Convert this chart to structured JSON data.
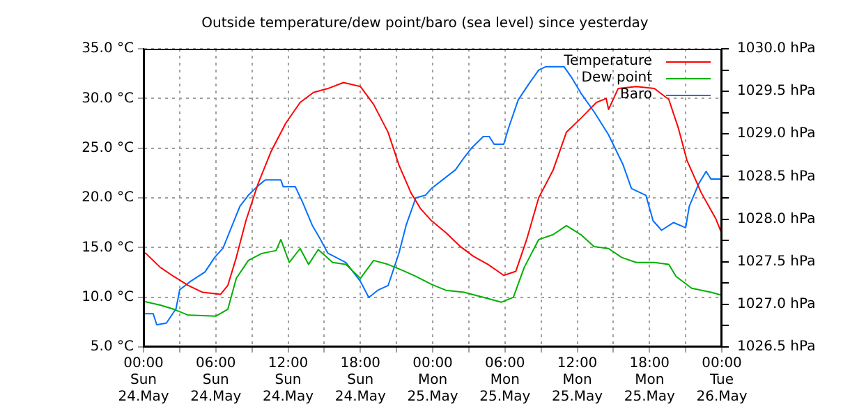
{
  "chart_data": {
    "type": "line",
    "title": "Outside temperature/dew point/baro (sea level) since yesterday",
    "xlim": [
      "--05-24T00:00",
      "--05-26T00:00"
    ],
    "xticks": [
      {
        "value": "--05-24T00:00",
        "label": "00:00\nSun\n24.May"
      },
      {
        "value": "--05-24T03:00",
        "label": null
      },
      {
        "value": "--05-24T06:00",
        "label": "06:00\nSun\n24.May"
      },
      {
        "value": "--05-24T09:00",
        "label": null
      },
      {
        "value": "--05-24T12:00",
        "label": "12:00\nSun\n24.May"
      },
      {
        "value": "--05-24T15:00",
        "label": null
      },
      {
        "value": "--05-24T18:00",
        "label": "18:00\nSun\n24.May"
      },
      {
        "value": "--05-24T21:00",
        "label": null
      },
      {
        "value": "--05-25T00:00",
        "label": "00:00\nMon\n25.May"
      },
      {
        "value": "--05-25T03:00",
        "label": null
      },
      {
        "value": "--05-25T06:00",
        "label": "06:00\nMon\n25.May"
      },
      {
        "value": "--05-25T09:00",
        "label": null
      },
      {
        "value": "--05-25T12:00",
        "label": "12:00\nMon\n25.May"
      },
      {
        "value": "--05-25T15:00",
        "label": null
      },
      {
        "value": "--05-25T18:00",
        "label": "18:00\nMon\n25.May"
      },
      {
        "value": "--05-25T21:00",
        "label": null
      },
      {
        "value": "--05-26T00:00",
        "label": "00:00\nTue\n26.May"
      }
    ],
    "ylim": [
      5,
      35
    ],
    "yticks": [
      {
        "value": 5,
        "label": "5.0 °C"
      },
      {
        "value": 10,
        "label": "10.0 °C"
      },
      {
        "value": 15,
        "label": "15.0 °C"
      },
      {
        "value": 20,
        "label": "20.0 °C"
      },
      {
        "value": 25,
        "label": "25.0 °C"
      },
      {
        "value": 30,
        "label": "30.0 °C"
      },
      {
        "value": 35,
        "label": "35.0 °C"
      }
    ],
    "y2lim": [
      1026.5,
      1030
    ],
    "y2ticks": [
      {
        "value": 1026.5,
        "label": "1026.5 hPa"
      },
      {
        "value": 1026.75,
        "label": null
      },
      {
        "value": 1027,
        "label": "1027.0 hPa"
      },
      {
        "value": 1027.25,
        "label": null
      },
      {
        "value": 1027.5,
        "label": "1027.5 hPa"
      },
      {
        "value": 1027.75,
        "label": null
      },
      {
        "value": 1028,
        "label": "1028.0 hPa"
      },
      {
        "value": 1028.25,
        "label": null
      },
      {
        "value": 1028.5,
        "label": "1028.5 hPa"
      },
      {
        "value": 1028.75,
        "label": null
      },
      {
        "value": 1029,
        "label": "1029.0 hPa"
      },
      {
        "value": 1029.25,
        "label": null
      },
      {
        "value": 1029.5,
        "label": "1029.5 hPa"
      },
      {
        "value": 1029.75,
        "label": null
      },
      {
        "value": 1030,
        "label": "1030.0 hPa"
      }
    ],
    "grid": true,
    "legend": "top right",
    "marker": "none",
    "line_style": "solid",
    "series": [
      {
        "name": "Temperature",
        "color": "#ff0000",
        "x": [
          "--05-24T00:00",
          "--05-24T00:12",
          "--05-24T01:24",
          "--05-24T02:30",
          "--05-24T03:42",
          "--05-24T04:54",
          "--05-24T06:24",
          "--05-24T07:00",
          "--05-24T07:42",
          "--05-24T08:30",
          "--05-24T09:30",
          "--05-24T10:36",
          "--05-24T11:48",
          "--05-24T13:00",
          "--05-24T14:06",
          "--05-24T15:18",
          "--05-24T16:36",
          "--05-24T18:00",
          "--05-24T19:06",
          "--05-24T20:18",
          "--05-24T21:12",
          "--05-24T22:12",
          "--05-24T23:00",
          "--05-24T23:54",
          "--05-25T01:06",
          "--05-25T02:18",
          "--05-25T03:24",
          "--05-25T04:36",
          "--05-25T05:54",
          "--05-25T06:54",
          "--05-25T07:48",
          "--05-25T08:48",
          "--05-25T10:00",
          "--05-25T11:06",
          "--05-25T12:18",
          "--05-25T13:36",
          "--05-25T14:24",
          "--05-25T14:36",
          "--05-25T15:24",
          "--05-25T16:54",
          "--05-25T18:24",
          "--05-25T19:36",
          "--05-25T20:24",
          "--05-25T21:06",
          "--05-25T22:18",
          "--05-25T23:30",
          "--05-26T00:00"
        ],
        "values": [
          14.5,
          14.4,
          13,
          12.1,
          11.2,
          10.5,
          10.3,
          11.2,
          14,
          17.7,
          21.4,
          24.7,
          27.5,
          29.6,
          30.6,
          31,
          31.6,
          31.2,
          29.4,
          26.6,
          23.3,
          20.5,
          18.9,
          17.7,
          16.5,
          15.1,
          14.1,
          13.3,
          12.2,
          12.6,
          15.8,
          20,
          22.8,
          26.6,
          28,
          29.6,
          30,
          28.9,
          31,
          31.2,
          31,
          29.9,
          27,
          23.8,
          20.5,
          17.9,
          16.4
        ]
      },
      {
        "name": "Dew point",
        "color": "#00b000",
        "x": [
          "--05-24T00:00",
          "--05-24T01:24",
          "--05-24T02:30",
          "--05-24T03:42",
          "--05-24T06:00",
          "--05-24T07:00",
          "--05-24T07:42",
          "--05-24T08:42",
          "--05-24T09:48",
          "--05-24T11:00",
          "--05-24T11:24",
          "--05-24T12:06",
          "--05-24T13:00",
          "--05-24T13:42",
          "--05-24T14:30",
          "--05-24T15:42",
          "--05-24T16:48",
          "--05-24T18:00",
          "--05-24T19:06",
          "--05-24T20:18",
          "--05-24T21:30",
          "--05-24T22:36",
          "--05-24T23:54",
          "--05-25T01:06",
          "--05-25T02:36",
          "--05-25T04:12",
          "--05-25T05:42",
          "--05-25T06:42",
          "--05-25T07:36",
          "--05-25T08:48",
          "--05-25T10:00",
          "--05-25T11:06",
          "--05-25T12:18",
          "--05-25T13:24",
          "--05-25T14:36",
          "--05-25T15:42",
          "--05-25T16:54",
          "--05-25T18:24",
          "--05-25T19:36",
          "--05-25T20:12",
          "--05-25T21:30",
          "--05-25T23:06",
          "--05-26T00:00"
        ],
        "values": [
          9.6,
          9.2,
          8.8,
          8.2,
          8.1,
          8.8,
          11.9,
          13.7,
          14.4,
          14.7,
          15.8,
          13.5,
          14.9,
          13.3,
          14.8,
          13.5,
          13.3,
          11.9,
          13.7,
          13.3,
          12.7,
          12.1,
          11.3,
          10.7,
          10.5,
          10,
          9.5,
          10,
          13,
          15.8,
          16.3,
          17.2,
          16.3,
          15.1,
          14.9,
          14,
          13.5,
          13.5,
          13.3,
          12.1,
          10.9,
          10.5,
          10.2
        ]
      },
      {
        "name": "Baro",
        "color": "#0070ff",
        "axis": "y2",
        "x": [
          "--05-24T00:00",
          "--05-24T00:48",
          "--05-24T01:06",
          "--05-24T01:54",
          "--05-24T02:42",
          "--05-24T03:00",
          "--05-24T03:54",
          "--05-24T05:06",
          "--05-24T05:54",
          "--05-24T06:36",
          "--05-24T07:12",
          "--05-24T08:00",
          "--05-24T08:42",
          "--05-24T09:30",
          "--05-24T10:06",
          "--05-24T11:24",
          "--05-24T11:36",
          "--05-24T12:36",
          "--05-24T13:12",
          "--05-24T14:00",
          "--05-24T14:42",
          "--05-24T15:18",
          "--05-24T16:48",
          "--05-24T18:00",
          "--05-24T18:42",
          "--05-24T19:30",
          "--05-24T20:18",
          "--05-24T21:12",
          "--05-24T21:48",
          "--05-24T22:36",
          "--05-24T23:24",
          "--05-24T23:54",
          "--05-25T00:54",
          "--05-25T01:54",
          "--05-25T02:36",
          "--05-25T03:12",
          "--05-25T04:12",
          "--05-25T04:42",
          "--05-25T05:06",
          "--05-25T05:54",
          "--05-25T06:18",
          "--05-25T07:06",
          "--05-25T08:00",
          "--05-25T08:48",
          "--05-25T09:24",
          "--05-25T10:54",
          "--05-25T11:30",
          "--05-25T12:18",
          "--05-25T13:24",
          "--05-25T14:36",
          "--05-25T15:48",
          "--05-25T16:30",
          "--05-25T17:42",
          "--05-25T18:18",
          "--05-25T19:00",
          "--05-25T20:00",
          "--05-25T21:00",
          "--05-25T21:18",
          "--05-25T22:06",
          "--05-25T22:42",
          "--05-25T23:06",
          "--05-26T00:00"
        ],
        "values": [
          1026.89,
          1026.89,
          1026.76,
          1026.78,
          1026.95,
          1027.17,
          1027.27,
          1027.38,
          1027.55,
          1027.66,
          1027.87,
          1028.15,
          1028.28,
          1028.39,
          1028.46,
          1028.46,
          1028.38,
          1028.38,
          1028.2,
          1027.93,
          1027.76,
          1027.6,
          1027.49,
          1027.27,
          1027.08,
          1027.17,
          1027.22,
          1027.6,
          1027.93,
          1028.25,
          1028.28,
          1028.36,
          1028.47,
          1028.58,
          1028.72,
          1028.83,
          1028.97,
          1028.97,
          1028.88,
          1028.88,
          1029.07,
          1029.4,
          1029.59,
          1029.75,
          1029.79,
          1029.79,
          1029.67,
          1029.48,
          1029.26,
          1028.99,
          1028.64,
          1028.36,
          1028.28,
          1027.98,
          1027.87,
          1027.96,
          1027.9,
          1028.15,
          1028.42,
          1028.56,
          1028.47,
          1028.47
        ]
      }
    ]
  }
}
